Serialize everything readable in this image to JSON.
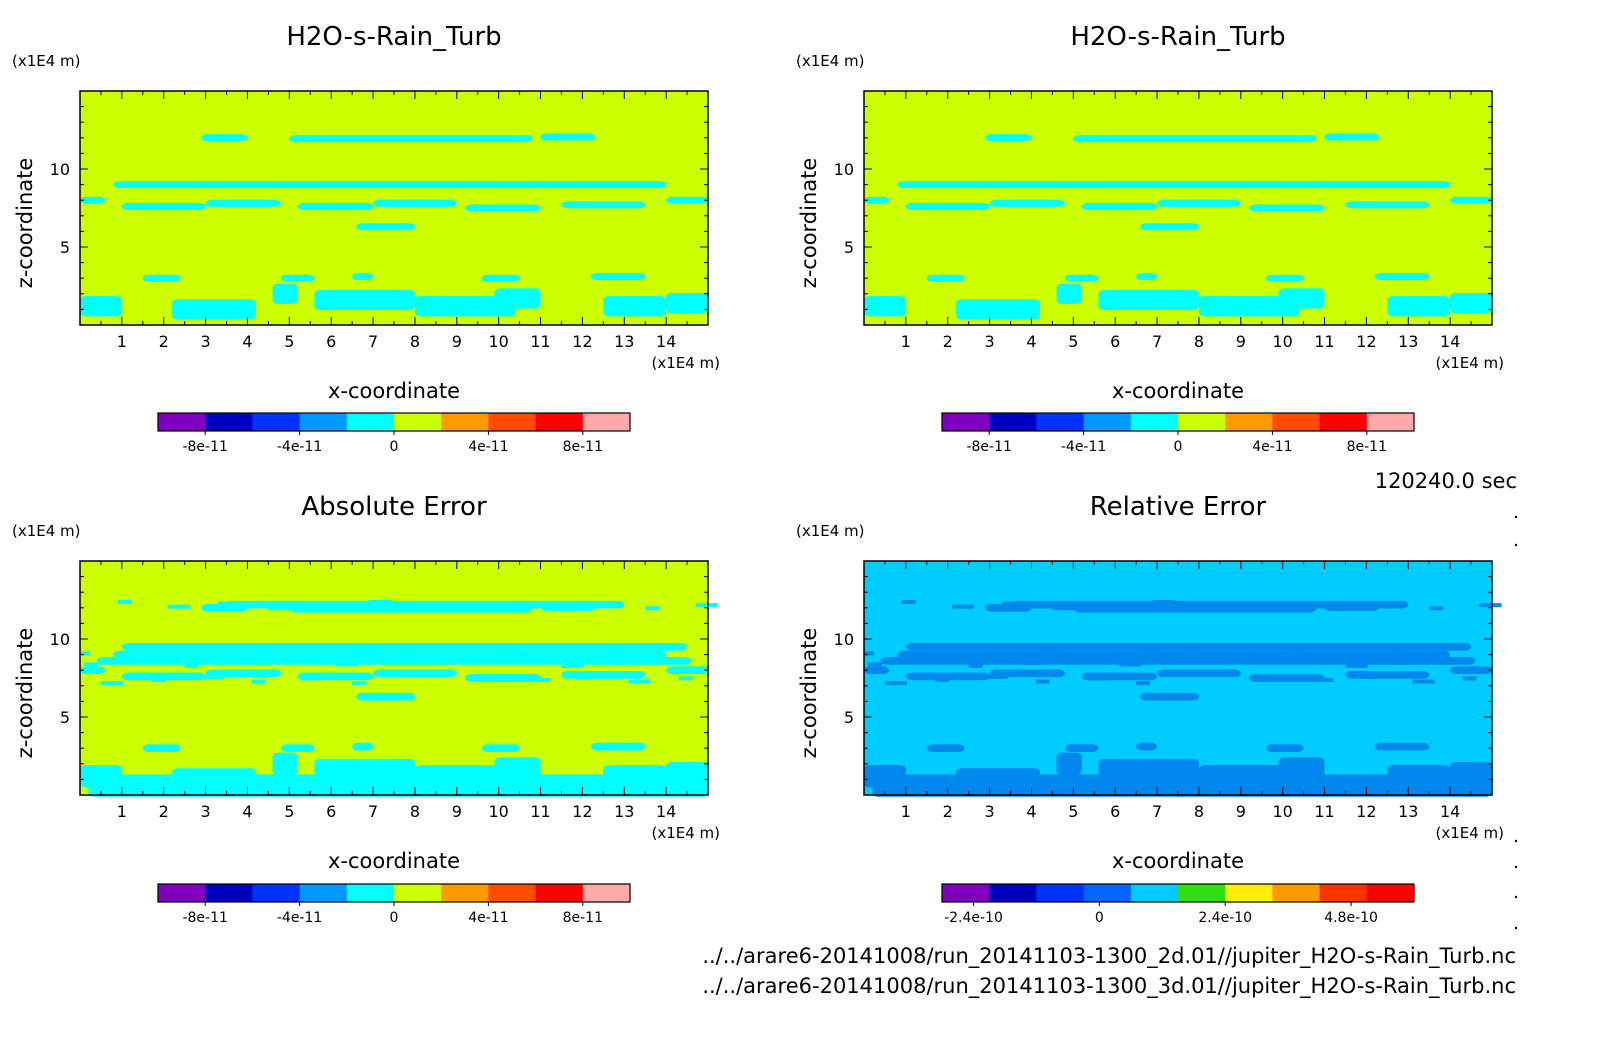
{
  "chart_data": [
    {
      "type": "heatmap",
      "title": "H2O-s-Rain_Turb",
      "xlabel": "x-coordinate",
      "ylabel": "z-coordinate",
      "x_unit": "(x1E4 m)",
      "y_unit": "(x1E4 m)",
      "xlim": [
        0,
        15
      ],
      "ylim": [
        0,
        15
      ],
      "x_ticks": [
        1,
        2,
        3,
        4,
        5,
        6,
        7,
        8,
        9,
        10,
        11,
        12,
        13,
        14
      ],
      "y_ticks": [
        5,
        10
      ],
      "background_color": "#ccff00",
      "feature_color": "#00ffff",
      "colorbar": {
        "colors": [
          "#7f00bf",
          "#0000bf",
          "#0033ff",
          "#0099ff",
          "#00ffff",
          "#ccff00",
          "#ff9900",
          "#ff4c00",
          "#ff0000",
          "#ffaaaa"
        ],
        "labels": [
          "-8e-11",
          "-4e-11",
          "0",
          "4e-11",
          "8e-11"
        ],
        "label_values": [
          -8e-11,
          -4e-11,
          0,
          4e-11,
          8e-11
        ],
        "range": [
          -1e-10,
          1e-10
        ]
      }
    },
    {
      "type": "heatmap",
      "title": "H2O-s-Rain_Turb",
      "xlabel": "x-coordinate",
      "ylabel": "z-coordinate",
      "x_unit": "(x1E4 m)",
      "y_unit": "(x1E4 m)",
      "xlim": [
        0,
        15
      ],
      "ylim": [
        0,
        15
      ],
      "x_ticks": [
        1,
        2,
        3,
        4,
        5,
        6,
        7,
        8,
        9,
        10,
        11,
        12,
        13,
        14
      ],
      "y_ticks": [
        5,
        10
      ],
      "background_color": "#ccff00",
      "feature_color": "#00ffff",
      "colorbar": {
        "colors": [
          "#7f00bf",
          "#0000bf",
          "#0033ff",
          "#0099ff",
          "#00ffff",
          "#ccff00",
          "#ff9900",
          "#ff4c00",
          "#ff0000",
          "#ffaaaa"
        ],
        "labels": [
          "-8e-11",
          "-4e-11",
          "0",
          "4e-11",
          "8e-11"
        ],
        "label_values": [
          -8e-11,
          -4e-11,
          0,
          4e-11,
          8e-11
        ],
        "range": [
          -1e-10,
          1e-10
        ]
      }
    },
    {
      "type": "heatmap",
      "title": "Absolute Error",
      "xlabel": "x-coordinate",
      "ylabel": "z-coordinate",
      "x_unit": "(x1E4 m)",
      "y_unit": "(x1E4 m)",
      "xlim": [
        0,
        15
      ],
      "ylim": [
        0,
        15
      ],
      "x_ticks": [
        1,
        2,
        3,
        4,
        5,
        6,
        7,
        8,
        9,
        10,
        11,
        12,
        13,
        14
      ],
      "y_ticks": [
        5,
        10
      ],
      "background_color": "#ccff00",
      "feature_color": "#00ffff",
      "colorbar": {
        "colors": [
          "#7f00bf",
          "#0000bf",
          "#0033ff",
          "#0099ff",
          "#00ffff",
          "#ccff00",
          "#ff9900",
          "#ff4c00",
          "#ff0000",
          "#ffaaaa"
        ],
        "labels": [
          "-8e-11",
          "-4e-11",
          "0",
          "4e-11",
          "8e-11"
        ],
        "label_values": [
          -8e-11,
          -4e-11,
          0,
          4e-11,
          8e-11
        ],
        "range": [
          -1e-10,
          1e-10
        ]
      }
    },
    {
      "type": "heatmap",
      "title": "Relative Error",
      "xlabel": "x-coordinate",
      "ylabel": "z-coordinate",
      "x_unit": "(x1E4 m)",
      "y_unit": "(x1E4 m)",
      "xlim": [
        0,
        15
      ],
      "ylim": [
        0,
        15
      ],
      "x_ticks": [
        1,
        2,
        3,
        4,
        5,
        6,
        7,
        8,
        9,
        10,
        11,
        12,
        13,
        14
      ],
      "y_ticks": [
        5,
        10
      ],
      "background_color": "#00ccff",
      "feature_color": "#0088ee",
      "colorbar": {
        "colors": [
          "#7f00bf",
          "#0000bf",
          "#0033ff",
          "#0066ff",
          "#00ccff",
          "#33dd11",
          "#ffee00",
          "#ff9900",
          "#ff3300",
          "#ff0000"
        ],
        "labels": [
          "-2.4e-10",
          "0",
          "2.4e-10",
          "4.8e-10"
        ],
        "label_values": [
          -2.4e-10,
          0,
          2.4e-10,
          4.8e-10
        ],
        "range": [
          -3e-10,
          6e-10
        ]
      }
    }
  ],
  "time_label": "120240.0 sec",
  "source_files": [
    "../../arare6-20141008/run_20141103-1300_2d.01//jupiter_H2O-s-Rain_Turb.nc",
    "../../arare6-20141008/run_20141103-1300_3d.01//jupiter_H2O-s-Rain_Turb.nc"
  ]
}
